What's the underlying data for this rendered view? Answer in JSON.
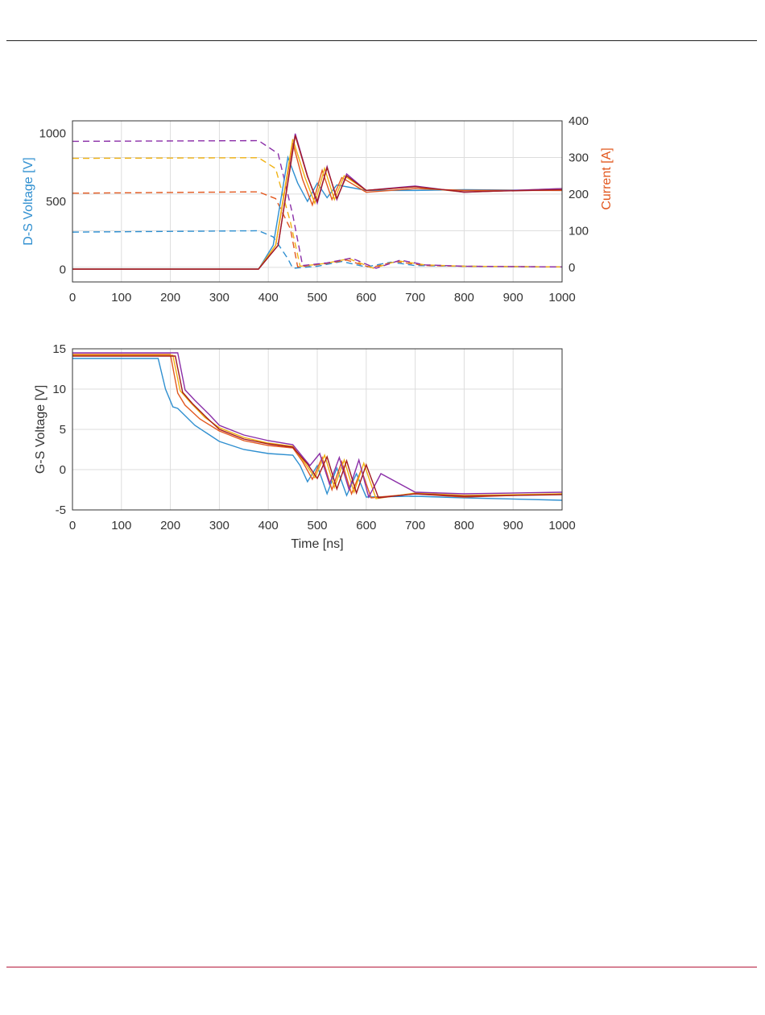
{
  "colors": {
    "series": [
      "#2f8fd0",
      "#e2581f",
      "#f0b214",
      "#8b2fa8",
      "#a3191f"
    ],
    "left_axis": "#2f8fd0",
    "right_axis": "#e2581f",
    "top_rule": "#222222",
    "bottom_rule": "#b5173a"
  },
  "chart_data": [
    {
      "type": "line",
      "grid": true,
      "legend": "none",
      "xlabel": "",
      "xlim": [
        0,
        1000
      ],
      "xticks": [
        "0",
        "100",
        "200",
        "300",
        "400",
        "500",
        "600",
        "700",
        "800",
        "900",
        "1000"
      ],
      "ylabel_left": "D-S Voltage [V]",
      "ylim_left": [
        -90,
        1090
      ],
      "yticks_left": [
        "0",
        "500",
        "1000"
      ],
      "ylabel_right": "Current [A]",
      "ylim_right": [
        -40,
        400
      ],
      "yticks_right": [
        "0",
        "100",
        "200",
        "300",
        "400"
      ],
      "voltage_series_dashed": [
        {
          "style": "dashed",
          "color_index": 0,
          "x": [
            0,
            380,
            410,
            440,
            450,
            500,
            550,
            600,
            650,
            700,
            800,
            1000
          ],
          "y": [
            275,
            285,
            240,
            80,
            10,
            25,
            60,
            20,
            55,
            30,
            25,
            20
          ]
        },
        {
          "style": "dashed",
          "color_index": 1,
          "x": [
            0,
            380,
            415,
            445,
            460,
            510,
            560,
            610,
            660,
            720,
            800,
            1000
          ],
          "y": [
            560,
            570,
            520,
            300,
            20,
            40,
            70,
            15,
            60,
            30,
            25,
            20
          ]
        },
        {
          "style": "dashed",
          "color_index": 2,
          "x": [
            0,
            380,
            415,
            445,
            465,
            515,
            565,
            615,
            665,
            720,
            800,
            1000
          ],
          "y": [
            815,
            820,
            740,
            350,
            25,
            45,
            80,
            10,
            65,
            35,
            25,
            20
          ]
        },
        {
          "style": "dashed",
          "color_index": 3,
          "x": [
            0,
            380,
            420,
            450,
            470,
            520,
            570,
            620,
            670,
            720,
            800,
            1000
          ],
          "y": [
            940,
            945,
            850,
            400,
            30,
            50,
            85,
            10,
            70,
            35,
            25,
            20
          ]
        }
      ],
      "current_series_solid": [
        {
          "style": "solid",
          "color_index": 0,
          "x": [
            0,
            380,
            410,
            440,
            460,
            480,
            500,
            520,
            540,
            600,
            700,
            800,
            1000
          ],
          "y": [
            -5,
            -5,
            60,
            300,
            230,
            180,
            230,
            190,
            225,
            210,
            210,
            212,
            210
          ]
        },
        {
          "style": "solid",
          "color_index": 1,
          "x": [
            0,
            380,
            415,
            450,
            470,
            490,
            510,
            530,
            550,
            600,
            700,
            800,
            1000
          ],
          "y": [
            -5,
            -5,
            60,
            340,
            240,
            170,
            265,
            185,
            245,
            205,
            215,
            210,
            210
          ]
        },
        {
          "style": "solid",
          "color_index": 2,
          "x": [
            0,
            380,
            415,
            450,
            475,
            495,
            515,
            535,
            555,
            600,
            700,
            800,
            1000
          ],
          "y": [
            -5,
            -5,
            60,
            350,
            245,
            175,
            270,
            185,
            250,
            210,
            220,
            205,
            215
          ]
        },
        {
          "style": "solid",
          "color_index": 3,
          "x": [
            0,
            380,
            420,
            455,
            480,
            500,
            520,
            540,
            560,
            600,
            700,
            800,
            1000
          ],
          "y": [
            -5,
            -5,
            60,
            365,
            250,
            175,
            275,
            185,
            255,
            210,
            222,
            205,
            215
          ]
        },
        {
          "style": "solid",
          "color_index": 4,
          "x": [
            0,
            380,
            420,
            455,
            480,
            500,
            520,
            540,
            560,
            600,
            700,
            800,
            1000
          ],
          "y": [
            -5,
            -5,
            60,
            360,
            248,
            180,
            272,
            188,
            250,
            210,
            220,
            206,
            212
          ]
        }
      ]
    },
    {
      "type": "line",
      "grid": true,
      "legend": "none",
      "xlabel": "Time [ns]",
      "xlim": [
        0,
        1000
      ],
      "xticks": [
        "0",
        "100",
        "200",
        "300",
        "400",
        "500",
        "600",
        "700",
        "800",
        "900",
        "1000"
      ],
      "ylabel": "G-S Voltage [V]",
      "ylim": [
        -5,
        15
      ],
      "yticks": [
        "-5",
        "0",
        "5",
        "10",
        "15"
      ],
      "series": [
        {
          "color_index": 0,
          "x": [
            0,
            175,
            190,
            205,
            215,
            250,
            300,
            350,
            400,
            450,
            465,
            480,
            500,
            520,
            540,
            560,
            580,
            600,
            700,
            800,
            1000
          ],
          "y": [
            13.8,
            13.8,
            10,
            7.8,
            7.6,
            5.5,
            3.5,
            2.5,
            2,
            1.8,
            0.5,
            -1.5,
            0.5,
            -3,
            0.2,
            -3.2,
            -0.5,
            -3.4,
            -3.3,
            -3.5,
            -3.8
          ]
        },
        {
          "color_index": 1,
          "x": [
            0,
            200,
            215,
            230,
            260,
            300,
            350,
            400,
            450,
            470,
            490,
            510,
            530,
            550,
            570,
            590,
            610,
            700,
            800,
            1000
          ],
          "y": [
            14.3,
            14.3,
            9.5,
            8,
            6.3,
            4.8,
            3.6,
            3,
            2.7,
            1,
            -1.2,
            1.5,
            -2.5,
            1,
            -3,
            0,
            -3.5,
            -3,
            -3.4,
            -3
          ]
        },
        {
          "color_index": 2,
          "x": [
            0,
            205,
            220,
            240,
            270,
            300,
            350,
            400,
            450,
            475,
            495,
            515,
            535,
            555,
            575,
            595,
            620,
            700,
            800,
            1000
          ],
          "y": [
            14.2,
            14.2,
            9.8,
            8.4,
            6.5,
            5.2,
            4,
            3.3,
            2.9,
            0.8,
            -1,
            1.8,
            -2.2,
            1.2,
            -2.8,
            0.8,
            -3.6,
            -2.9,
            -3.2,
            -3
          ]
        },
        {
          "color_index": 3,
          "x": [
            0,
            215,
            230,
            250,
            280,
            300,
            350,
            400,
            450,
            485,
            505,
            525,
            545,
            565,
            585,
            605,
            630,
            700,
            800,
            1000
          ],
          "y": [
            14.5,
            14.5,
            9.9,
            8.6,
            6.8,
            5.5,
            4.3,
            3.6,
            3.1,
            0.5,
            2,
            -1.8,
            1.5,
            -2.5,
            1.2,
            -3.4,
            -0.5,
            -2.8,
            -3,
            -2.8
          ]
        },
        {
          "color_index": 4,
          "x": [
            0,
            210,
            225,
            245,
            275,
            300,
            350,
            400,
            450,
            480,
            500,
            520,
            540,
            560,
            580,
            600,
            625,
            700,
            800,
            1000
          ],
          "y": [
            14.1,
            14.1,
            9.6,
            8.2,
            6.4,
            5,
            3.8,
            3.2,
            2.8,
            0.7,
            -1.1,
            1.6,
            -2.4,
            1.1,
            -2.9,
            0.6,
            -3.5,
            -3,
            -3.3,
            -3.1
          ]
        }
      ]
    }
  ]
}
